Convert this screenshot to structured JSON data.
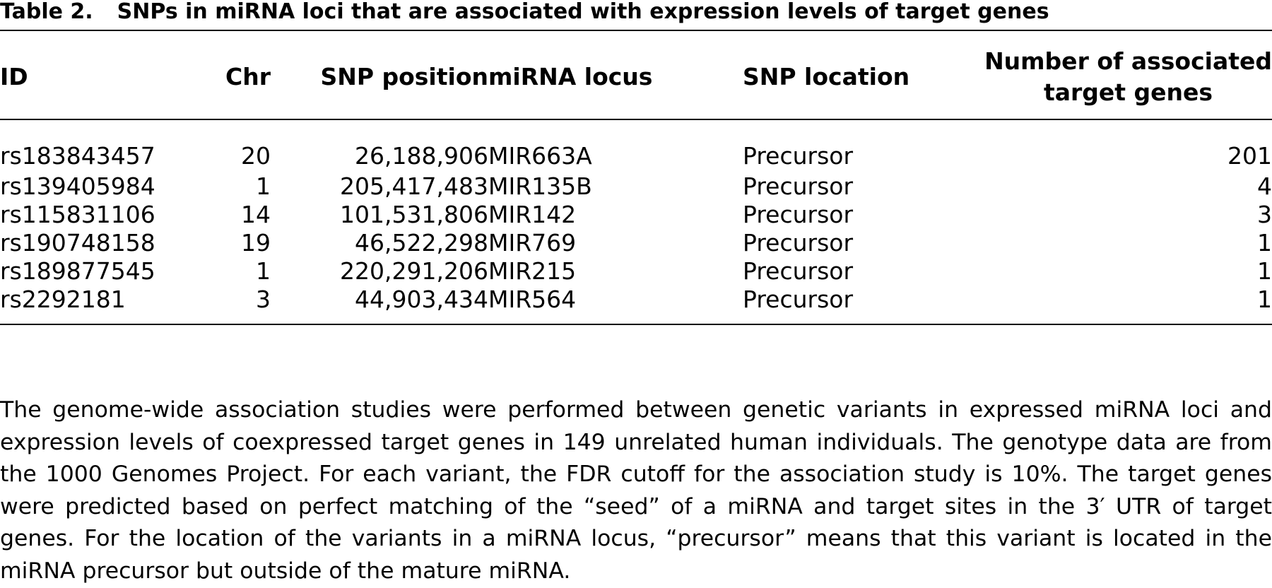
{
  "table": {
    "label": "Table 2.",
    "title": "SNPs in miRNA loci that are associated with expression levels of target genes",
    "headers": {
      "id": "ID",
      "chr": "Chr",
      "position": "SNP position",
      "locus": "miRNA locus",
      "location": "SNP location",
      "count_line1": "Number of associated",
      "count_line2": "target genes"
    },
    "rows": [
      {
        "id": "rs183843457",
        "chr": "20",
        "position": "26,188,906",
        "locus": "MIR663A",
        "location": "Precursor",
        "count": "201"
      },
      {
        "id": "rs139405984",
        "chr": "1",
        "position": "205,417,483",
        "locus": "MIR135B",
        "location": "Precursor",
        "count": "4"
      },
      {
        "id": "rs115831106",
        "chr": "14",
        "position": "101,531,806",
        "locus": "MIR142",
        "location": "Precursor",
        "count": "3"
      },
      {
        "id": "rs190748158",
        "chr": "19",
        "position": "46,522,298",
        "locus": "MIR769",
        "location": "Precursor",
        "count": "1"
      },
      {
        "id": "rs189877545",
        "chr": "1",
        "position": "220,291,206",
        "locus": "MIR215",
        "location": "Precursor",
        "count": "1"
      },
      {
        "id": "rs2292181",
        "chr": "3",
        "position": "44,903,434",
        "locus": "MIR564",
        "location": "Precursor",
        "count": "1"
      }
    ],
    "footnote": "The genome-wide association studies were performed between genetic variants in expressed miRNA loci and expression levels of coexpressed target genes in 149 unrelated human individuals. The genotype data are from the 1000 Genomes Project. For each variant, the FDR cutoff for the association study is 10%. The target genes were predicted based on perfect matching of the “seed” of a miRNA and target sites in the 3′ UTR of target genes. For the location of the variants in a miRNA locus, “precursor” means that this variant is located in the miRNA precursor but outside of the mature miRNA."
  }
}
